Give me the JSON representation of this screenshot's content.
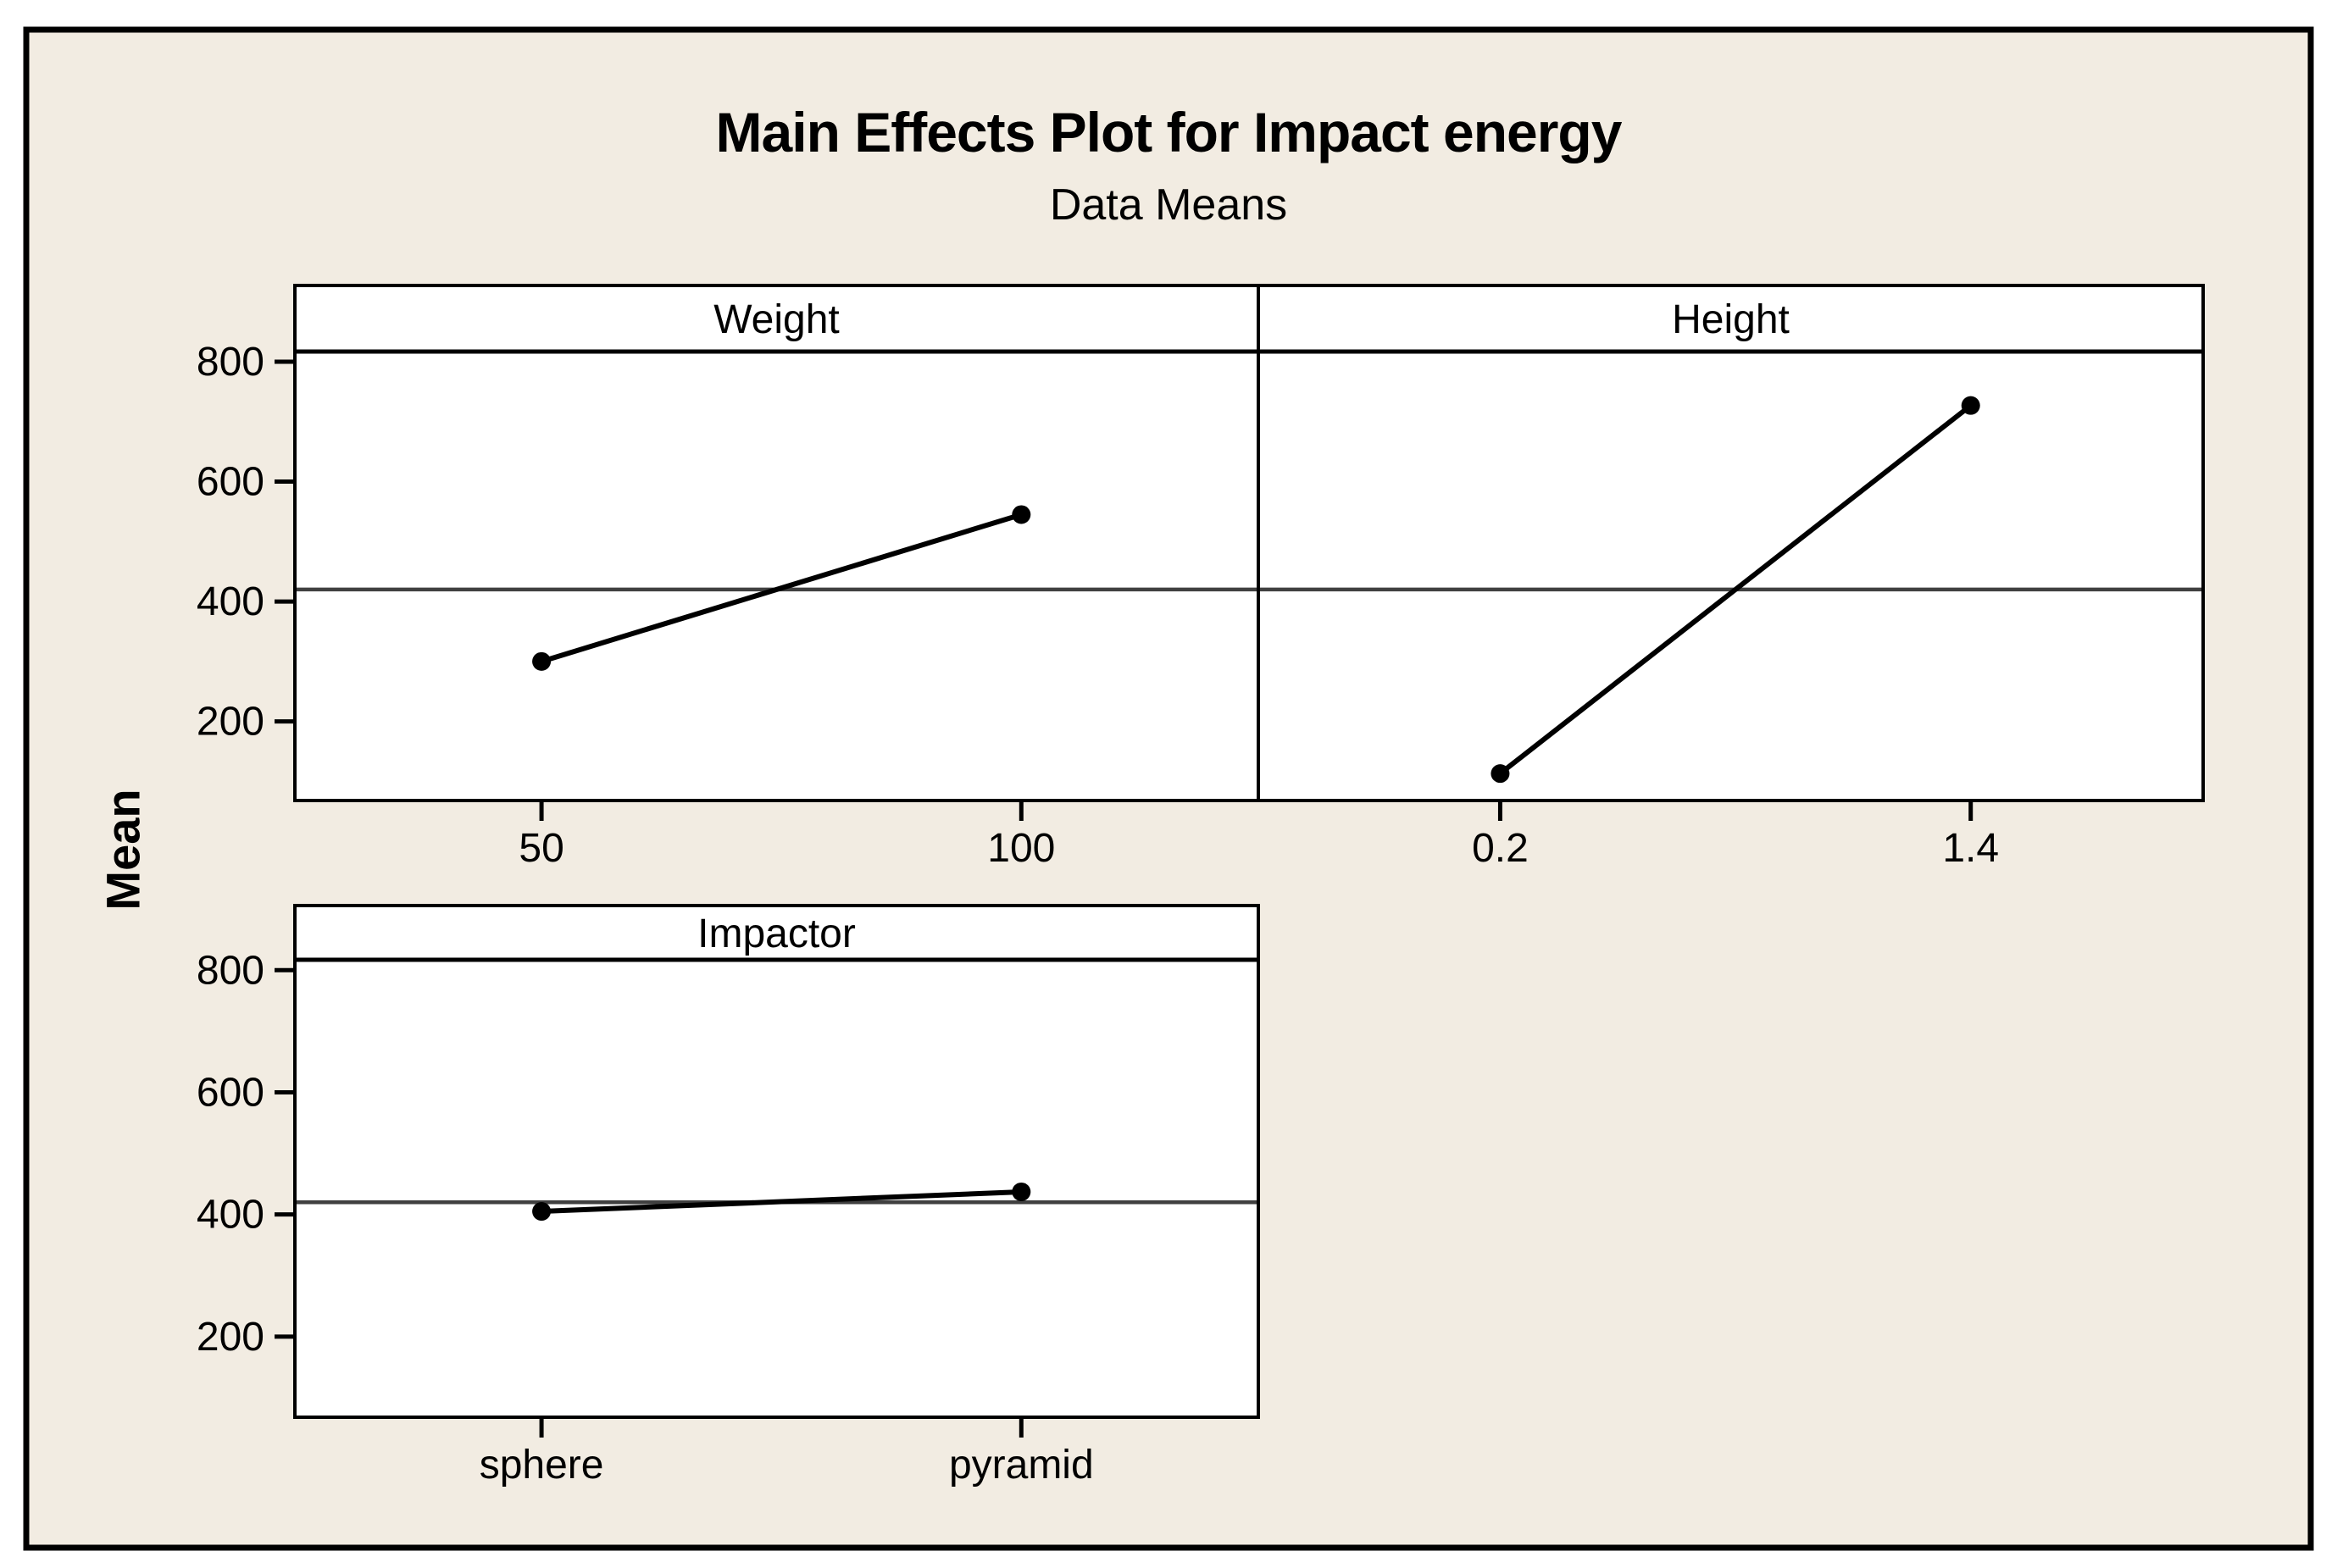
{
  "figure": {
    "title": "Main Effects Plot for Impact energy",
    "subtitle": "Data Means",
    "y_axis_label": "Mean"
  },
  "colors": {
    "page_background": "#FFFFFF",
    "figure_background": "#F2ECE2",
    "panel_background": "#FFFFFF",
    "frame_border": "#000000",
    "panel_border": "#000000",
    "data_line": "#000000",
    "data_point": "#000000",
    "reference_line": "#404040",
    "text": "#000000"
  },
  "chart_data": {
    "type": "line",
    "title": "Main Effects Plot for Impact energy",
    "subtitle": "Data Means",
    "ylabel": "Mean",
    "ylim": [
      68,
      817
    ],
    "yticks": [
      200,
      400,
      600,
      800
    ],
    "reference_line_value": 420,
    "reference_line_note": "grand mean of all data means",
    "grid": "off (only grand-mean reference line)",
    "legend": "none",
    "panels": [
      {
        "factor": "Weight",
        "categories": [
          "50",
          "100"
        ],
        "values": [
          300,
          545
        ]
      },
      {
        "factor": "Height",
        "categories": [
          "0.2",
          "1.4"
        ],
        "values": [
          113,
          727
        ]
      },
      {
        "factor": "Impactor",
        "categories": [
          "sphere",
          "pyramid"
        ],
        "values": [
          405,
          437
        ]
      }
    ]
  }
}
